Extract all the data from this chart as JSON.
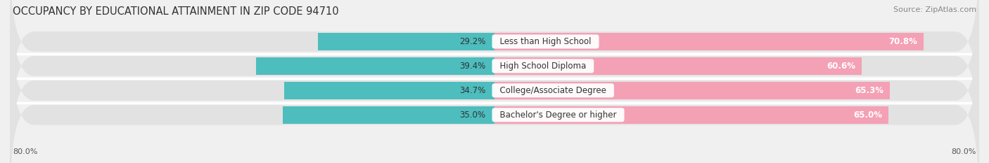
{
  "title": "OCCUPANCY BY EDUCATIONAL ATTAINMENT IN ZIP CODE 94710",
  "source": "Source: ZipAtlas.com",
  "categories": [
    "Less than High School",
    "High School Diploma",
    "College/Associate Degree",
    "Bachelor's Degree or higher"
  ],
  "owner_values": [
    29.2,
    39.4,
    34.7,
    35.0
  ],
  "renter_values": [
    70.8,
    60.6,
    65.3,
    65.0
  ],
  "owner_color": "#4dbdbe",
  "renter_color": "#f4a0b5",
  "xlim_left": -80,
  "xlim_right": 80,
  "bar_height": 0.72,
  "bg_bar_height": 0.82,
  "title_fontsize": 10.5,
  "source_fontsize": 8,
  "value_fontsize": 8.5,
  "label_fontsize": 8.5,
  "legend_fontsize": 8.5,
  "axis_label_fontsize": 8,
  "background_color": "#f0f0f0",
  "bar_background_color": "#e2e2e2",
  "row_bg_color": "#f8f8f8"
}
